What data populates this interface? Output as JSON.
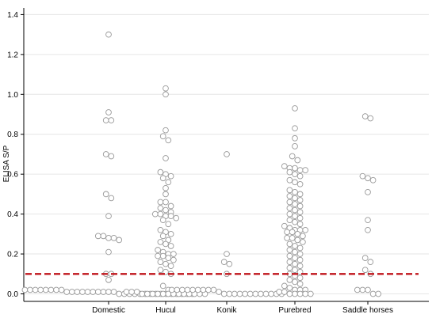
{
  "chart_data": {
    "type": "scatter",
    "title": "",
    "xlabel": "",
    "ylabel": "ELISA S/P",
    "ylim": [
      -0.02,
      1.42
    ],
    "yticks": [
      "0.0",
      "0.2",
      "0.4",
      "0.6",
      "0.8",
      "1.0",
      "1.2",
      "1.4"
    ],
    "categories": [
      "Domestic",
      "Hucul",
      "Konik",
      "Purebred",
      "Saddle horses"
    ],
    "grid": true,
    "cutoff": {
      "value": 0.1,
      "color": "#c0161c",
      "style": "dashed"
    },
    "marker_color": "#999999",
    "series": [
      {
        "category": "Domestic",
        "values": [
          1.3,
          0.91,
          0.87,
          0.87,
          0.7,
          0.69,
          0.5,
          0.48,
          0.39,
          0.29,
          0.29,
          0.28,
          0.28,
          0.27,
          0.21,
          0.1,
          0.1,
          0.07,
          0.02,
          0.02,
          0.02,
          0.02,
          0.02,
          0.02,
          0.02,
          0.02,
          0.01,
          0.01,
          0.01,
          0.01,
          0.01,
          0.01,
          0.01,
          0.01,
          0.01,
          0.01,
          0.0,
          0.0,
          0.0,
          0.0,
          0.0,
          0.0,
          0.0,
          0.0,
          0.0,
          0.0,
          0.0,
          0.0,
          0.0,
          0.0,
          0.0
        ]
      },
      {
        "category": "Hucul",
        "values": [
          1.03,
          1.0,
          0.82,
          0.79,
          0.77,
          0.68,
          0.61,
          0.6,
          0.59,
          0.58,
          0.56,
          0.53,
          0.5,
          0.46,
          0.46,
          0.44,
          0.43,
          0.42,
          0.41,
          0.4,
          0.4,
          0.39,
          0.39,
          0.38,
          0.37,
          0.35,
          0.32,
          0.31,
          0.3,
          0.29,
          0.27,
          0.26,
          0.25,
          0.24,
          0.22,
          0.21,
          0.2,
          0.2,
          0.19,
          0.19,
          0.18,
          0.17,
          0.16,
          0.15,
          0.14,
          0.12,
          0.11,
          0.1,
          0.04,
          0.02,
          0.01,
          0.01,
          0.01,
          0.0,
          0.0,
          0.0,
          0.0,
          0.0,
          0.0,
          0.0,
          0.0,
          0.0,
          0.0,
          0.0,
          0.0,
          0.0
        ]
      },
      {
        "category": "Konik",
        "values": [
          0.7,
          0.2,
          0.16,
          0.15,
          0.1,
          0.02,
          0.02,
          0.02,
          0.02,
          0.02,
          0.02,
          0.02,
          0.02,
          0.02,
          0.01,
          0.0,
          0.0,
          0.0,
          0.0,
          0.0,
          0.0,
          0.0,
          0.0,
          0.0,
          0.0,
          0.0,
          0.0
        ]
      },
      {
        "category": "Purebred",
        "values": [
          0.93,
          0.83,
          0.78,
          0.74,
          0.69,
          0.67,
          0.64,
          0.63,
          0.63,
          0.62,
          0.62,
          0.61,
          0.6,
          0.59,
          0.57,
          0.56,
          0.55,
          0.52,
          0.51,
          0.5,
          0.49,
          0.48,
          0.47,
          0.46,
          0.45,
          0.44,
          0.43,
          0.42,
          0.41,
          0.4,
          0.39,
          0.38,
          0.37,
          0.36,
          0.35,
          0.34,
          0.33,
          0.32,
          0.32,
          0.32,
          0.31,
          0.31,
          0.3,
          0.29,
          0.28,
          0.28,
          0.27,
          0.26,
          0.25,
          0.24,
          0.23,
          0.22,
          0.21,
          0.2,
          0.19,
          0.18,
          0.17,
          0.16,
          0.15,
          0.14,
          0.13,
          0.12,
          0.11,
          0.1,
          0.09,
          0.08,
          0.07,
          0.06,
          0.05,
          0.04,
          0.03,
          0.02,
          0.02,
          0.02,
          0.01,
          0.01,
          0.0,
          0.0,
          0.0,
          0.0,
          0.0
        ]
      },
      {
        "category": "Saddle horses",
        "values": [
          0.89,
          0.88,
          0.59,
          0.58,
          0.57,
          0.51,
          0.37,
          0.32,
          0.18,
          0.16,
          0.12,
          0.1,
          0.02,
          0.02,
          0.02,
          0.0,
          0.0
        ]
      }
    ]
  }
}
